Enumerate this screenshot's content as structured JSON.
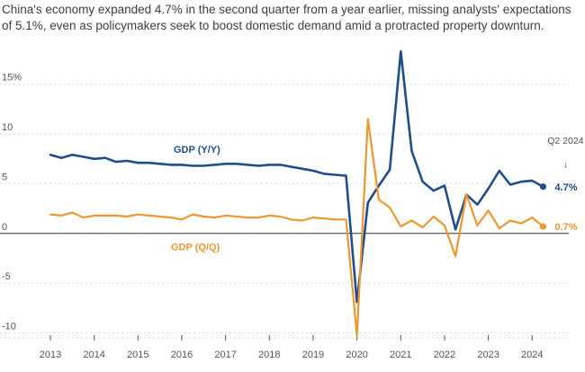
{
  "subtitle": "China's economy expanded 4.7% in the second quarter from a year earlier, missing analysts' expectations of 5.1%, even as policymakers seek to boost domestic demand amid a protracted property downturn.",
  "chart_data": {
    "type": "line",
    "x_labels": [
      "2013",
      "2014",
      "2015",
      "2016",
      "2017",
      "2018",
      "2019",
      "2020",
      "2021",
      "2022",
      "2023",
      "2024"
    ],
    "y_ticks": [
      {
        "value": 15,
        "label": "15%"
      },
      {
        "value": 10,
        "label": "10"
      },
      {
        "value": 5,
        "label": "5"
      },
      {
        "value": 0,
        "label": "0"
      },
      {
        "value": -5,
        "label": "-5"
      },
      {
        "value": -10,
        "label": "-10"
      }
    ],
    "ylim": [
      -10.5,
      18.5
    ],
    "xlim": [
      2013,
      2024.75
    ],
    "grid": true,
    "series": [
      {
        "name": "GDP (Y/Y)",
        "color": "#1f4e8c",
        "end_label": "4.7%",
        "x": [
          2013.0,
          2013.25,
          2013.5,
          2013.75,
          2014.0,
          2014.25,
          2014.5,
          2014.75,
          2015.0,
          2015.25,
          2015.5,
          2015.75,
          2016.0,
          2016.25,
          2016.5,
          2016.75,
          2017.0,
          2017.25,
          2017.5,
          2017.75,
          2018.0,
          2018.25,
          2018.5,
          2018.75,
          2019.0,
          2019.25,
          2019.5,
          2019.75,
          2020.0,
          2020.25,
          2020.5,
          2020.75,
          2021.0,
          2021.25,
          2021.5,
          2021.75,
          2022.0,
          2022.25,
          2022.5,
          2022.75,
          2023.0,
          2023.25,
          2023.5,
          2023.75,
          2024.0,
          2024.25
        ],
        "y": [
          7.9,
          7.6,
          7.9,
          7.7,
          7.5,
          7.6,
          7.2,
          7.3,
          7.1,
          7.1,
          7.0,
          6.9,
          6.9,
          6.8,
          6.8,
          6.9,
          7.0,
          7.0,
          6.9,
          6.8,
          6.9,
          6.9,
          6.7,
          6.5,
          6.3,
          6.0,
          5.9,
          5.8,
          -6.9,
          3.1,
          4.8,
          6.4,
          18.3,
          8.3,
          5.2,
          4.3,
          4.8,
          0.4,
          3.9,
          2.9,
          4.5,
          6.3,
          4.9,
          5.2,
          5.3,
          4.7
        ]
      },
      {
        "name": "GDP (Q/Q)",
        "color": "#f0962e",
        "end_label": "0.7%",
        "x": [
          2013.0,
          2013.25,
          2013.5,
          2013.75,
          2014.0,
          2014.25,
          2014.5,
          2014.75,
          2015.0,
          2015.25,
          2015.5,
          2015.75,
          2016.0,
          2016.25,
          2016.5,
          2016.75,
          2017.0,
          2017.25,
          2017.5,
          2017.75,
          2018.0,
          2018.25,
          2018.5,
          2018.75,
          2019.0,
          2019.25,
          2019.5,
          2019.75,
          2020.0,
          2020.25,
          2020.5,
          2020.75,
          2021.0,
          2021.25,
          2021.5,
          2021.75,
          2022.0,
          2022.25,
          2022.5,
          2022.75,
          2023.0,
          2023.25,
          2023.5,
          2023.75,
          2024.0,
          2024.25
        ],
        "y": [
          1.9,
          1.8,
          2.1,
          1.6,
          1.8,
          1.8,
          1.8,
          1.7,
          1.9,
          1.8,
          1.7,
          1.6,
          1.4,
          1.9,
          1.7,
          1.6,
          1.8,
          1.7,
          1.6,
          1.6,
          1.8,
          1.7,
          1.4,
          1.3,
          1.6,
          1.5,
          1.4,
          1.4,
          -10.3,
          11.5,
          3.4,
          2.6,
          0.7,
          1.3,
          0.6,
          1.7,
          0.8,
          -2.3,
          3.9,
          0.8,
          2.3,
          0.5,
          1.3,
          1.0,
          1.6,
          0.7
        ]
      }
    ],
    "annotation": {
      "text": "Q2 2024",
      "arrow": "↓"
    }
  }
}
